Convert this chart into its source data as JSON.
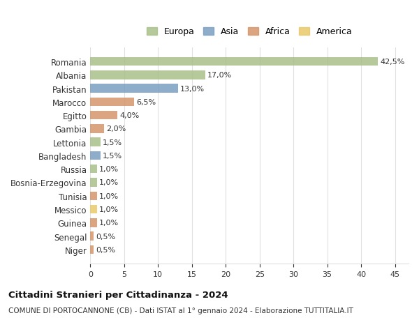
{
  "countries": [
    "Romania",
    "Albania",
    "Pakistan",
    "Marocco",
    "Egitto",
    "Gambia",
    "Lettonia",
    "Bangladesh",
    "Russia",
    "Bosnia-Erzegovina",
    "Tunisia",
    "Messico",
    "Guinea",
    "Senegal",
    "Niger"
  ],
  "values": [
    42.5,
    17.0,
    13.0,
    6.5,
    4.0,
    2.0,
    1.5,
    1.5,
    1.0,
    1.0,
    1.0,
    1.0,
    1.0,
    0.5,
    0.5
  ],
  "labels": [
    "42,5%",
    "17,0%",
    "13,0%",
    "6,5%",
    "4,0%",
    "2,0%",
    "1,5%",
    "1,5%",
    "1,0%",
    "1,0%",
    "1,0%",
    "1,0%",
    "1,0%",
    "0,5%",
    "0,5%"
  ],
  "continents": [
    "Europa",
    "Europa",
    "Asia",
    "Africa",
    "Africa",
    "Africa",
    "Europa",
    "Asia",
    "Europa",
    "Europa",
    "Africa",
    "America",
    "Africa",
    "Africa",
    "Africa"
  ],
  "colors": {
    "Europa": "#a8c08a",
    "Asia": "#7a9fc2",
    "Africa": "#d4956a",
    "America": "#e8c96a"
  },
  "legend_colors": {
    "Europa": "#a8c08a",
    "Asia": "#7a9fc2",
    "Africa": "#d4956a",
    "America": "#e8c96a"
  },
  "title1": "Cittadini Stranieri per Cittadinanza - 2024",
  "title2": "COMUNE DI PORTOCANNONE (CB) - Dati ISTAT al 1° gennaio 2024 - Elaborazione TUTTITALIA.IT",
  "xlim": [
    0,
    47
  ],
  "xticks": [
    0,
    5,
    10,
    15,
    20,
    25,
    30,
    35,
    40,
    45
  ],
  "background_color": "#ffffff",
  "grid_color": "#e0e0e0"
}
